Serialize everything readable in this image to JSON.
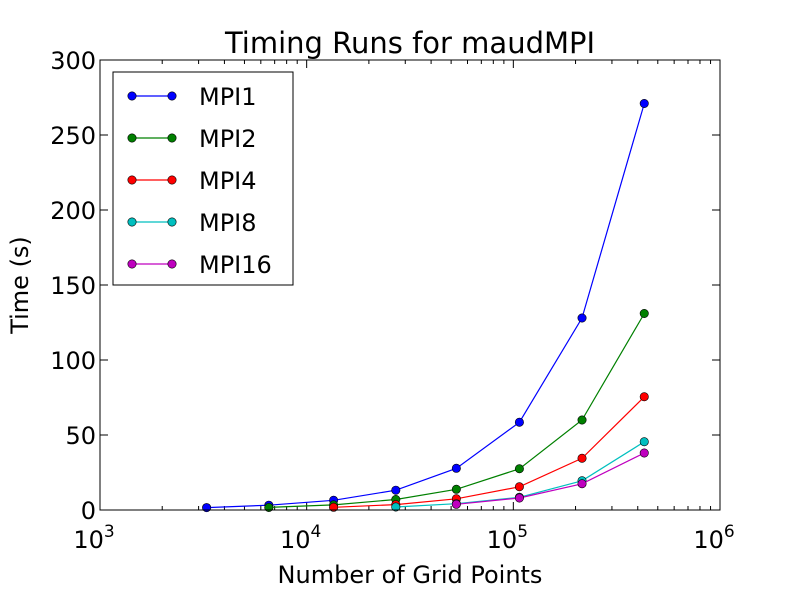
{
  "chart_data": {
    "type": "line",
    "title": "Timing Runs for maudMPI",
    "xlabel": "Number of Grid Points",
    "ylabel": "Time (s)",
    "xscale": "log",
    "xlim": [
      1000,
      1000000
    ],
    "ylim": [
      0,
      300
    ],
    "x_ticks": [
      {
        "value": 1000,
        "base": "10",
        "exp": "3"
      },
      {
        "value": 10000,
        "base": "10",
        "exp": "4"
      },
      {
        "value": 100000,
        "base": "10",
        "exp": "5"
      },
      {
        "value": 1000000,
        "base": "10",
        "exp": "6"
      }
    ],
    "y_ticks": [
      0,
      50,
      100,
      150,
      200,
      250,
      300
    ],
    "grid": false,
    "legend_position": "top-left",
    "marker": "circle",
    "series": [
      {
        "name": "MPI1",
        "color": "#0000ff",
        "x": [
          3280,
          6560,
          13500,
          27000,
          53000,
          107000,
          215000,
          430000
        ],
        "y": [
          1.6,
          3.2,
          6.5,
          13.2,
          27.8,
          58.5,
          128,
          271
        ]
      },
      {
        "name": "MPI2",
        "color": "#008000",
        "x": [
          6560,
          13500,
          27000,
          53000,
          107000,
          215000,
          430000
        ],
        "y": [
          1.7,
          3.4,
          7.0,
          13.8,
          27.5,
          60,
          131
        ]
      },
      {
        "name": "MPI4",
        "color": "#ff0000",
        "x": [
          13500,
          27000,
          53000,
          107000,
          215000,
          430000
        ],
        "y": [
          1.8,
          3.6,
          7.5,
          15.5,
          34.5,
          75.5
        ]
      },
      {
        "name": "MPI8",
        "color": "#00bfbf",
        "x": [
          27000,
          53000,
          107000,
          215000,
          430000
        ],
        "y": [
          2.0,
          4.2,
          8.5,
          19.5,
          45.5
        ]
      },
      {
        "name": "MPI16",
        "color": "#bf00bf",
        "x": [
          53000,
          107000,
          215000,
          430000
        ],
        "y": [
          3.8,
          8.0,
          17.5,
          38
        ]
      }
    ]
  }
}
